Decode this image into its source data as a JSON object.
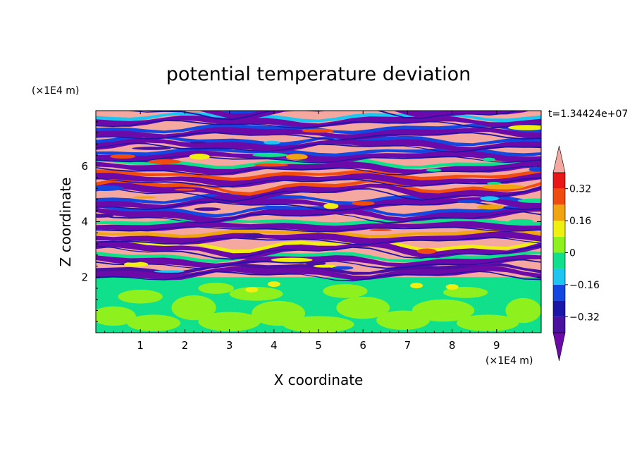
{
  "chart_data": {
    "type": "heatmap",
    "title": "potential temperature deviation",
    "xlabel": "X coordinate",
    "ylabel": "Z coordinate",
    "x_unit": "(×1E4 m)",
    "y_unit": "(×1E4 m)",
    "time_label": "t=1.34424e+07",
    "xlim": [
      0,
      10
    ],
    "ylim": [
      0,
      8
    ],
    "x_ticks": [
      "1",
      "2",
      "3",
      "4",
      "5",
      "6",
      "7",
      "8",
      "9"
    ],
    "y_ticks": [
      "2",
      "4",
      "6"
    ],
    "colorbar": {
      "levels": [
        -0.4,
        -0.32,
        -0.24,
        -0.16,
        -0.08,
        0,
        0.08,
        0.16,
        0.24,
        0.32,
        0.4
      ],
      "tick_labels": [
        "0.32",
        "0.16",
        "0",
        "−0.16",
        "−0.32"
      ],
      "tick_values": [
        0.32,
        0.16,
        0,
        -0.16,
        -0.32
      ],
      "colors": {
        "below": "#6b0aa8",
        "bins": [
          "#4a10a0",
          "#1d15a8",
          "#1446e0",
          "#1cc6f0",
          "#10e08c",
          "#8ef01c",
          "#f0f010",
          "#f0a410",
          "#f04c10",
          "#e81818"
        ],
        "above": "#f4a8a0"
      }
    },
    "regions": [
      {
        "z_range": [
          0,
          2.0
        ],
        "description": "lower layer mostly green / light-green (weak deviation ~0 to 0.08)"
      },
      {
        "z_range": [
          2.0,
          8.0
        ],
        "description": "layered bands alternating violet (below −0.4) and salmon (above 0.4) with mixed transition colors"
      }
    ]
  }
}
